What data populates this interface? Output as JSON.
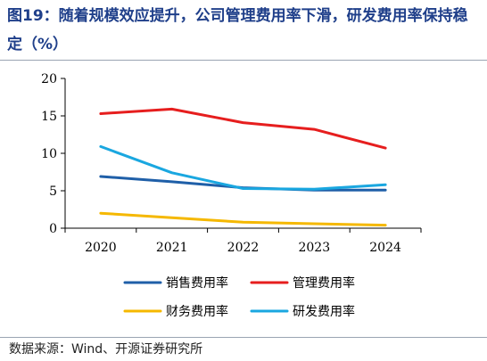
{
  "title": "图19：随着规模效应提升，公司管理费用率下滑，研发费用率保持稳定（%）",
  "source": "数据来源：Wind、开源证券研究所",
  "chart_data": {
    "type": "line",
    "categories": [
      "2020",
      "2021",
      "2022",
      "2023",
      "2024"
    ],
    "ylim": [
      0,
      20
    ],
    "yticks": [
      0,
      5,
      10,
      15,
      20
    ],
    "grid": false,
    "legend_position": "bottom",
    "series": [
      {
        "name": "销售费用率",
        "color": "#1f5fa8",
        "values": [
          6.9,
          6.2,
          5.4,
          5.1,
          5.1
        ]
      },
      {
        "name": "管理费用率",
        "color": "#e61e1e",
        "values": [
          15.3,
          15.9,
          14.1,
          13.2,
          10.7
        ]
      },
      {
        "name": "财务费用率",
        "color": "#f5b800",
        "values": [
          2.0,
          1.4,
          0.8,
          0.6,
          0.4
        ]
      },
      {
        "name": "研发费用率",
        "color": "#1aa7e0",
        "values": [
          10.9,
          7.4,
          5.3,
          5.2,
          5.8
        ]
      }
    ]
  }
}
